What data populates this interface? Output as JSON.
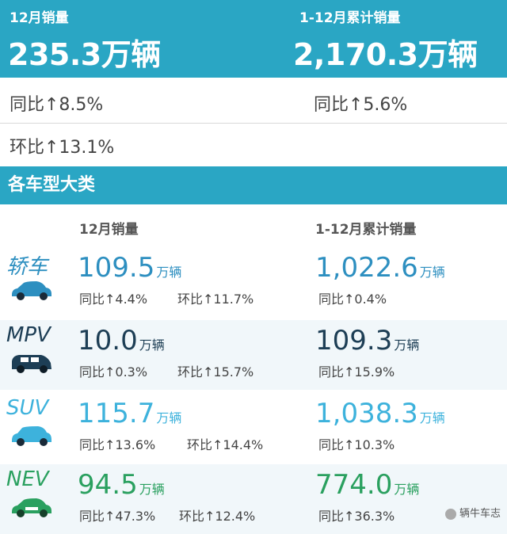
{
  "summary": {
    "monthly": {
      "label": "12月销量",
      "value": "235.3万辆",
      "yoy": "同比↑8.5%",
      "mom": "环比↑13.1%"
    },
    "cumulative": {
      "label": "1-12月累计销量",
      "value": "2,170.3万辆",
      "yoy": "同比↑5.6%"
    }
  },
  "section_title": "各车型大类",
  "columns": {
    "monthly": "12月销量",
    "cumulative": "1-12月累计销量"
  },
  "unit": "万辆",
  "categories": [
    {
      "name": "轿车",
      "color": "#2d8fc0",
      "monthly": {
        "value": "109.5",
        "yoy": "同比↑4.4%",
        "mom": "环比↑11.7%"
      },
      "cumulative": {
        "value": "1,022.6",
        "yoy": "同比↑0.4%"
      }
    },
    {
      "name": "MPV",
      "color": "#1d3e55",
      "monthly": {
        "value": "10.0",
        "yoy": "同比↑0.3%",
        "mom": "环比↑15.7%"
      },
      "cumulative": {
        "value": "109.3",
        "yoy": "同比↑15.9%"
      }
    },
    {
      "name": "SUV",
      "color": "#3db2dc",
      "monthly": {
        "value": "115.7",
        "yoy": "同比↑13.6%",
        "mom": "环比↑14.4%"
      },
      "cumulative": {
        "value": "1,038.3",
        "yoy": "同比↑10.3%"
      }
    },
    {
      "name": "NEV",
      "color": "#2aa05f",
      "monthly": {
        "value": "94.5",
        "yoy": "同比↑47.3%",
        "mom": "环比↑12.4%"
      },
      "cumulative": {
        "value": "774.0",
        "yoy": "同比↑36.3%"
      }
    }
  ],
  "watermark": "辆牛车志"
}
